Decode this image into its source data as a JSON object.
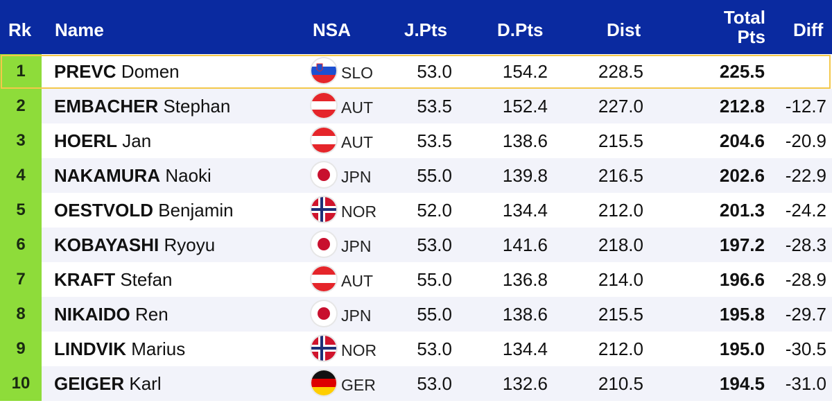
{
  "header": {
    "rk": "Rk",
    "name": "Name",
    "nsa": "NSA",
    "jpts": "J.Pts",
    "dpts": "D.Pts",
    "dist": "Dist",
    "total_line1": "Total",
    "total_line2": "Pts",
    "diff": "Diff"
  },
  "colors": {
    "header_bg": "#0a2aa0",
    "rank_bg": "#8edc3a",
    "highlight_border": "#f4c84a",
    "row_alt_bg": "#f2f3fa"
  },
  "rows": [
    {
      "rk": "1",
      "last": "PREVC",
      "first": "Domen",
      "nsa": "SLO",
      "flag": "slo-flag-icon",
      "jpts": "53.0",
      "dpts": "154.2",
      "dist": "228.5",
      "total": "225.5",
      "diff": ""
    },
    {
      "rk": "2",
      "last": "EMBACHER",
      "first": "Stephan",
      "nsa": "AUT",
      "flag": "aut-flag-icon",
      "jpts": "53.5",
      "dpts": "152.4",
      "dist": "227.0",
      "total": "212.8",
      "diff": "-12.7"
    },
    {
      "rk": "3",
      "last": "HOERL",
      "first": "Jan",
      "nsa": "AUT",
      "flag": "aut-flag-icon",
      "jpts": "53.5",
      "dpts": "138.6",
      "dist": "215.5",
      "total": "204.6",
      "diff": "-20.9"
    },
    {
      "rk": "4",
      "last": "NAKAMURA",
      "first": "Naoki",
      "nsa": "JPN",
      "flag": "jpn-flag-icon",
      "jpts": "55.0",
      "dpts": "139.8",
      "dist": "216.5",
      "total": "202.6",
      "diff": "-22.9"
    },
    {
      "rk": "5",
      "last": "OESTVOLD",
      "first": "Benjamin",
      "nsa": "NOR",
      "flag": "nor-flag-icon",
      "jpts": "52.0",
      "dpts": "134.4",
      "dist": "212.0",
      "total": "201.3",
      "diff": "-24.2"
    },
    {
      "rk": "6",
      "last": "KOBAYASHI",
      "first": "Ryoyu",
      "nsa": "JPN",
      "flag": "jpn-flag-icon",
      "jpts": "53.0",
      "dpts": "141.6",
      "dist": "218.0",
      "total": "197.2",
      "diff": "-28.3"
    },
    {
      "rk": "7",
      "last": "KRAFT",
      "first": "Stefan",
      "nsa": "AUT",
      "flag": "aut-flag-icon",
      "jpts": "55.0",
      "dpts": "136.8",
      "dist": "214.0",
      "total": "196.6",
      "diff": "-28.9"
    },
    {
      "rk": "8",
      "last": "NIKAIDO",
      "first": "Ren",
      "nsa": "JPN",
      "flag": "jpn-flag-icon",
      "jpts": "55.0",
      "dpts": "138.6",
      "dist": "215.5",
      "total": "195.8",
      "diff": "-29.7"
    },
    {
      "rk": "9",
      "last": "LINDVIK",
      "first": "Marius",
      "nsa": "NOR",
      "flag": "nor-flag-icon",
      "jpts": "53.0",
      "dpts": "134.4",
      "dist": "212.0",
      "total": "195.0",
      "diff": "-30.5"
    },
    {
      "rk": "10",
      "last": "GEIGER",
      "first": "Karl",
      "nsa": "GER",
      "flag": "ger-flag-icon",
      "jpts": "53.0",
      "dpts": "132.6",
      "dist": "210.5",
      "total": "194.5",
      "diff": "-31.0"
    }
  ]
}
